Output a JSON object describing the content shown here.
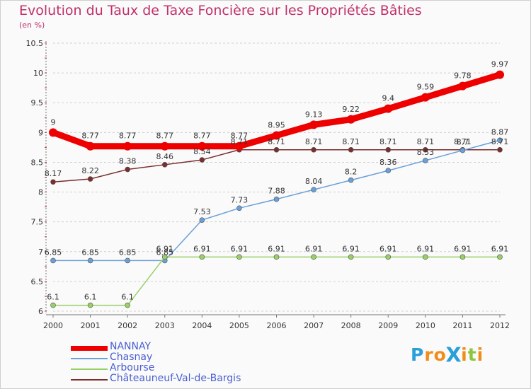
{
  "title": "Evolution du Taux de Taxe Foncière sur les Propriétés Bâties",
  "unit_label": "(en %)",
  "logo": {
    "text": "Proxiti",
    "letters": [
      {
        "ch": "P",
        "color": "#2a9fd8"
      },
      {
        "ch": "r",
        "color": "#f08c1a"
      },
      {
        "ch": "o",
        "color": "#f08c1a"
      },
      {
        "ch": "X",
        "color": "#2a9fd8"
      },
      {
        "ch": "i",
        "color": "#f08c1a"
      },
      {
        "ch": "t",
        "color": "#8cc63f"
      },
      {
        "ch": "i",
        "color": "#f08c1a"
      }
    ]
  },
  "chart_data": {
    "type": "line",
    "title": "Evolution du Taux de Taxe Foncière sur les Propriétés Bâties",
    "ylabel": "(en %)",
    "xlabel": "",
    "x": [
      "2000",
      "2001",
      "2002",
      "2003",
      "2004",
      "2005",
      "2006",
      "2007",
      "2008",
      "2009",
      "2010",
      "2011",
      "2012"
    ],
    "ylim": [
      6,
      10.5
    ],
    "yticks": [
      "6",
      "6.5",
      "7",
      "7.5",
      "8",
      "8.5",
      "9",
      "9.5",
      "10",
      "10.5"
    ],
    "grid": "dashed horizontal",
    "legend_position": "bottom-left",
    "series": [
      {
        "name": "NANNAY",
        "color": "#ee0000",
        "values": [
          9,
          8.77,
          8.77,
          8.77,
          8.77,
          8.77,
          8.95,
          9.13,
          9.22,
          9.4,
          9.59,
          9.78,
          9.97
        ],
        "labels": [
          "9",
          "8.77",
          "8.77",
          "8.77",
          "8.77",
          "8.77",
          "8.95",
          "9.13",
          "9.22",
          "9.4",
          "9.59",
          "9.78",
          "9.97"
        ]
      },
      {
        "name": "Chasnay",
        "color": "#6aa0d8",
        "values": [
          6.85,
          6.85,
          6.85,
          6.85,
          7.53,
          7.73,
          7.88,
          8.04,
          8.2,
          8.36,
          8.53,
          8.7,
          8.87
        ],
        "labels": [
          "6.85",
          "6.85",
          "6.85",
          "6.85",
          "7.53",
          "7.73",
          "7.88",
          "8.04",
          "8.2",
          "8.36",
          "8.53",
          "8.7",
          "8.87"
        ]
      },
      {
        "name": "Arbourse",
        "color": "#99d066",
        "values": [
          6.1,
          6.1,
          6.1,
          6.91,
          6.91,
          6.91,
          6.91,
          6.91,
          6.91,
          6.91,
          6.91,
          6.91,
          6.91
        ],
        "labels": [
          "6.1",
          "6.1",
          "6.1",
          "6.91",
          "6.91",
          "6.91",
          "6.91",
          "6.91",
          "6.91",
          "6.91",
          "6.91",
          "6.91",
          "6.91"
        ]
      },
      {
        "name": "Châteauneuf-Val-de-Bargis",
        "color": "#7a2e2e",
        "values": [
          8.17,
          8.22,
          8.38,
          8.46,
          8.54,
          8.71,
          8.71,
          8.71,
          8.71,
          8.71,
          8.71,
          8.71,
          8.71
        ],
        "labels": [
          "8.17",
          "8.22",
          "8.38",
          "8.46",
          "8.54",
          "8.71",
          "8.71",
          "8.71",
          "8.71",
          "8.71",
          "8.71",
          "8.71",
          "8.71"
        ]
      }
    ]
  }
}
